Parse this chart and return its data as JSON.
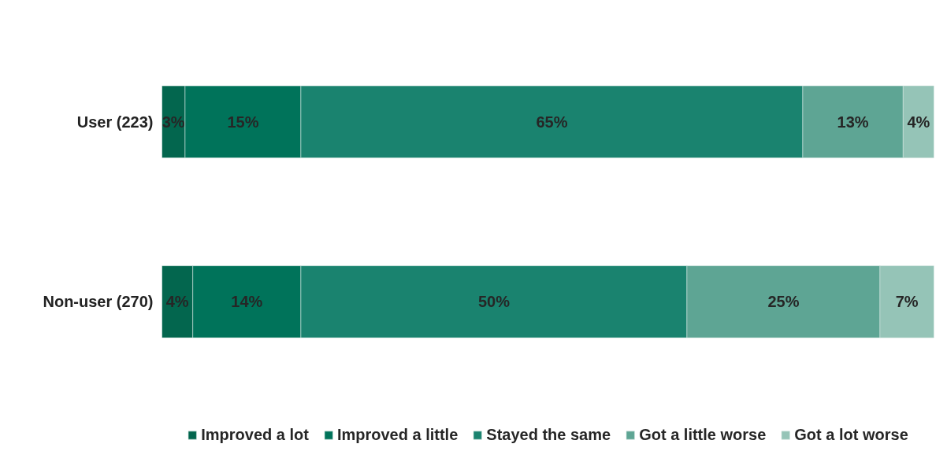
{
  "chart_data": {
    "type": "bar",
    "orientation": "horizontal",
    "stacked": true,
    "categories": [
      "User (223)",
      "Non-user (270)"
    ],
    "legend": "bottom",
    "grid": false,
    "tick_labels": "y",
    "series": [
      {
        "name": "Improved a lot",
        "color": "#03664e",
        "values": [
          3,
          4
        ],
        "value_labels": [
          "3%",
          "4%"
        ]
      },
      {
        "name": "Improved a little",
        "color": "#00735a",
        "values": [
          15,
          14
        ],
        "value_labels": [
          "15%",
          "14%"
        ]
      },
      {
        "name": "Stayed the same",
        "color": "#1a836f",
        "values": [
          65,
          50
        ],
        "value_labels": [
          "65%",
          "50%"
        ]
      },
      {
        "name": "Got a little worse",
        "color": "#5ea594",
        "values": [
          13,
          25
        ],
        "value_labels": [
          "13%",
          "25%"
        ]
      },
      {
        "name": "Got a lot worse",
        "color": "#95c4b7",
        "values": [
          4,
          7
        ],
        "value_labels": [
          "4%",
          "7%"
        ]
      }
    ]
  }
}
